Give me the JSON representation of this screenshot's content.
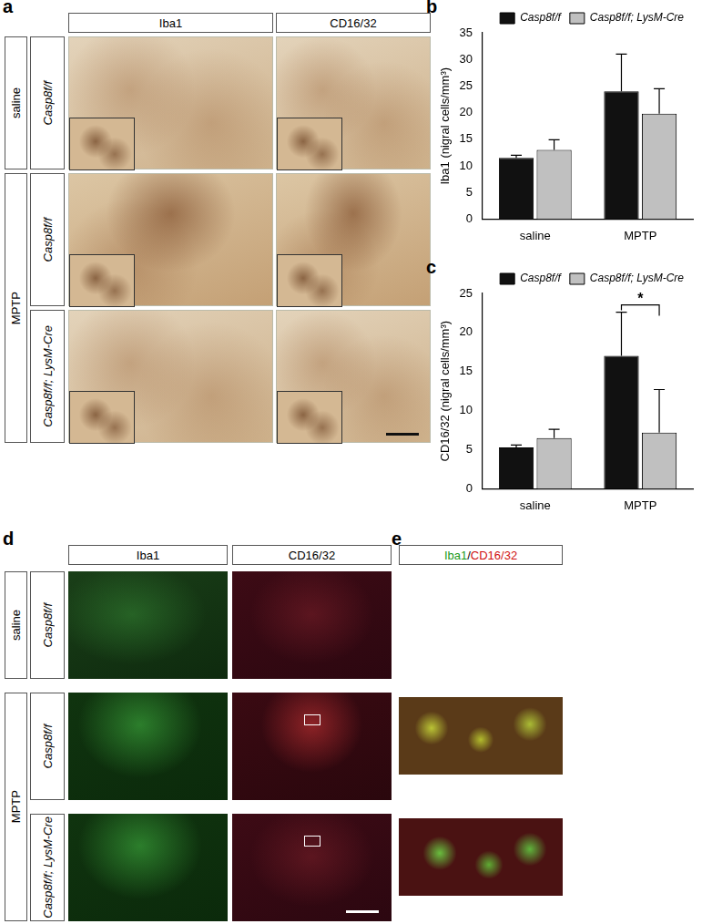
{
  "chart_data": [
    {
      "type": "bar",
      "y_label": "Iba1 (nigral cells/mm³)",
      "categories": [
        "saline",
        "MPTP"
      ],
      "series": [
        {
          "name": "Casp8f/f",
          "color": "#111111",
          "values": [
            11.5,
            24.0
          ],
          "errors": [
            0.5,
            7.0
          ]
        },
        {
          "name": "Casp8f/f; LysM-Cre",
          "color": "#c0c0c0",
          "values": [
            13.0,
            19.8
          ],
          "errors": [
            1.9,
            4.7
          ]
        }
      ],
      "ylim": [
        0,
        35
      ],
      "yticks": [
        0,
        5,
        10,
        15,
        20,
        25,
        30,
        35
      ],
      "grid": false,
      "legend": "upper right"
    },
    {
      "type": "bar",
      "y_label": "CD16/32 (nigral cells/mm³)",
      "categories": [
        "saline",
        "MPTP"
      ],
      "series": [
        {
          "name": "Casp8f/f",
          "color": "#111111",
          "values": [
            5.3,
            17.0
          ],
          "errors": [
            0.3,
            5.6
          ]
        },
        {
          "name": "Casp8f/f; LysM-Cre",
          "color": "#c0c0c0",
          "values": [
            6.5,
            7.2
          ],
          "errors": [
            1.1,
            5.5
          ]
        }
      ],
      "ylim": [
        0,
        25
      ],
      "yticks": [
        0,
        5,
        10,
        15,
        20,
        25
      ],
      "grid": false,
      "legend": "upper right",
      "significance": {
        "category": "MPTP",
        "text": "*"
      }
    }
  ],
  "figure": {
    "chart_letters": [
      "b",
      "c"
    ],
    "panel_a": {
      "letter": "a",
      "columns": [
        "Iba1",
        "CD16/32"
      ],
      "groups": [
        {
          "label": "saline",
          "rows": [
            "Casp8f/f"
          ]
        },
        {
          "label": "MPTP",
          "rows": [
            "Casp8f/f",
            "Casp8f/f; LysM-Cre"
          ]
        }
      ]
    },
    "panel_d": {
      "letter": "d",
      "columns": [
        "Iba1",
        "CD16/32"
      ],
      "groups": [
        {
          "label": "saline",
          "rows": [
            "Casp8f/f"
          ]
        },
        {
          "label": "MPTP",
          "rows": [
            "Casp8f/f",
            "Casp8f/f; LysM-Cre"
          ]
        }
      ]
    },
    "panel_e": {
      "letter": "e",
      "header": [
        "Iba1",
        "/",
        "CD16/32"
      ]
    }
  }
}
